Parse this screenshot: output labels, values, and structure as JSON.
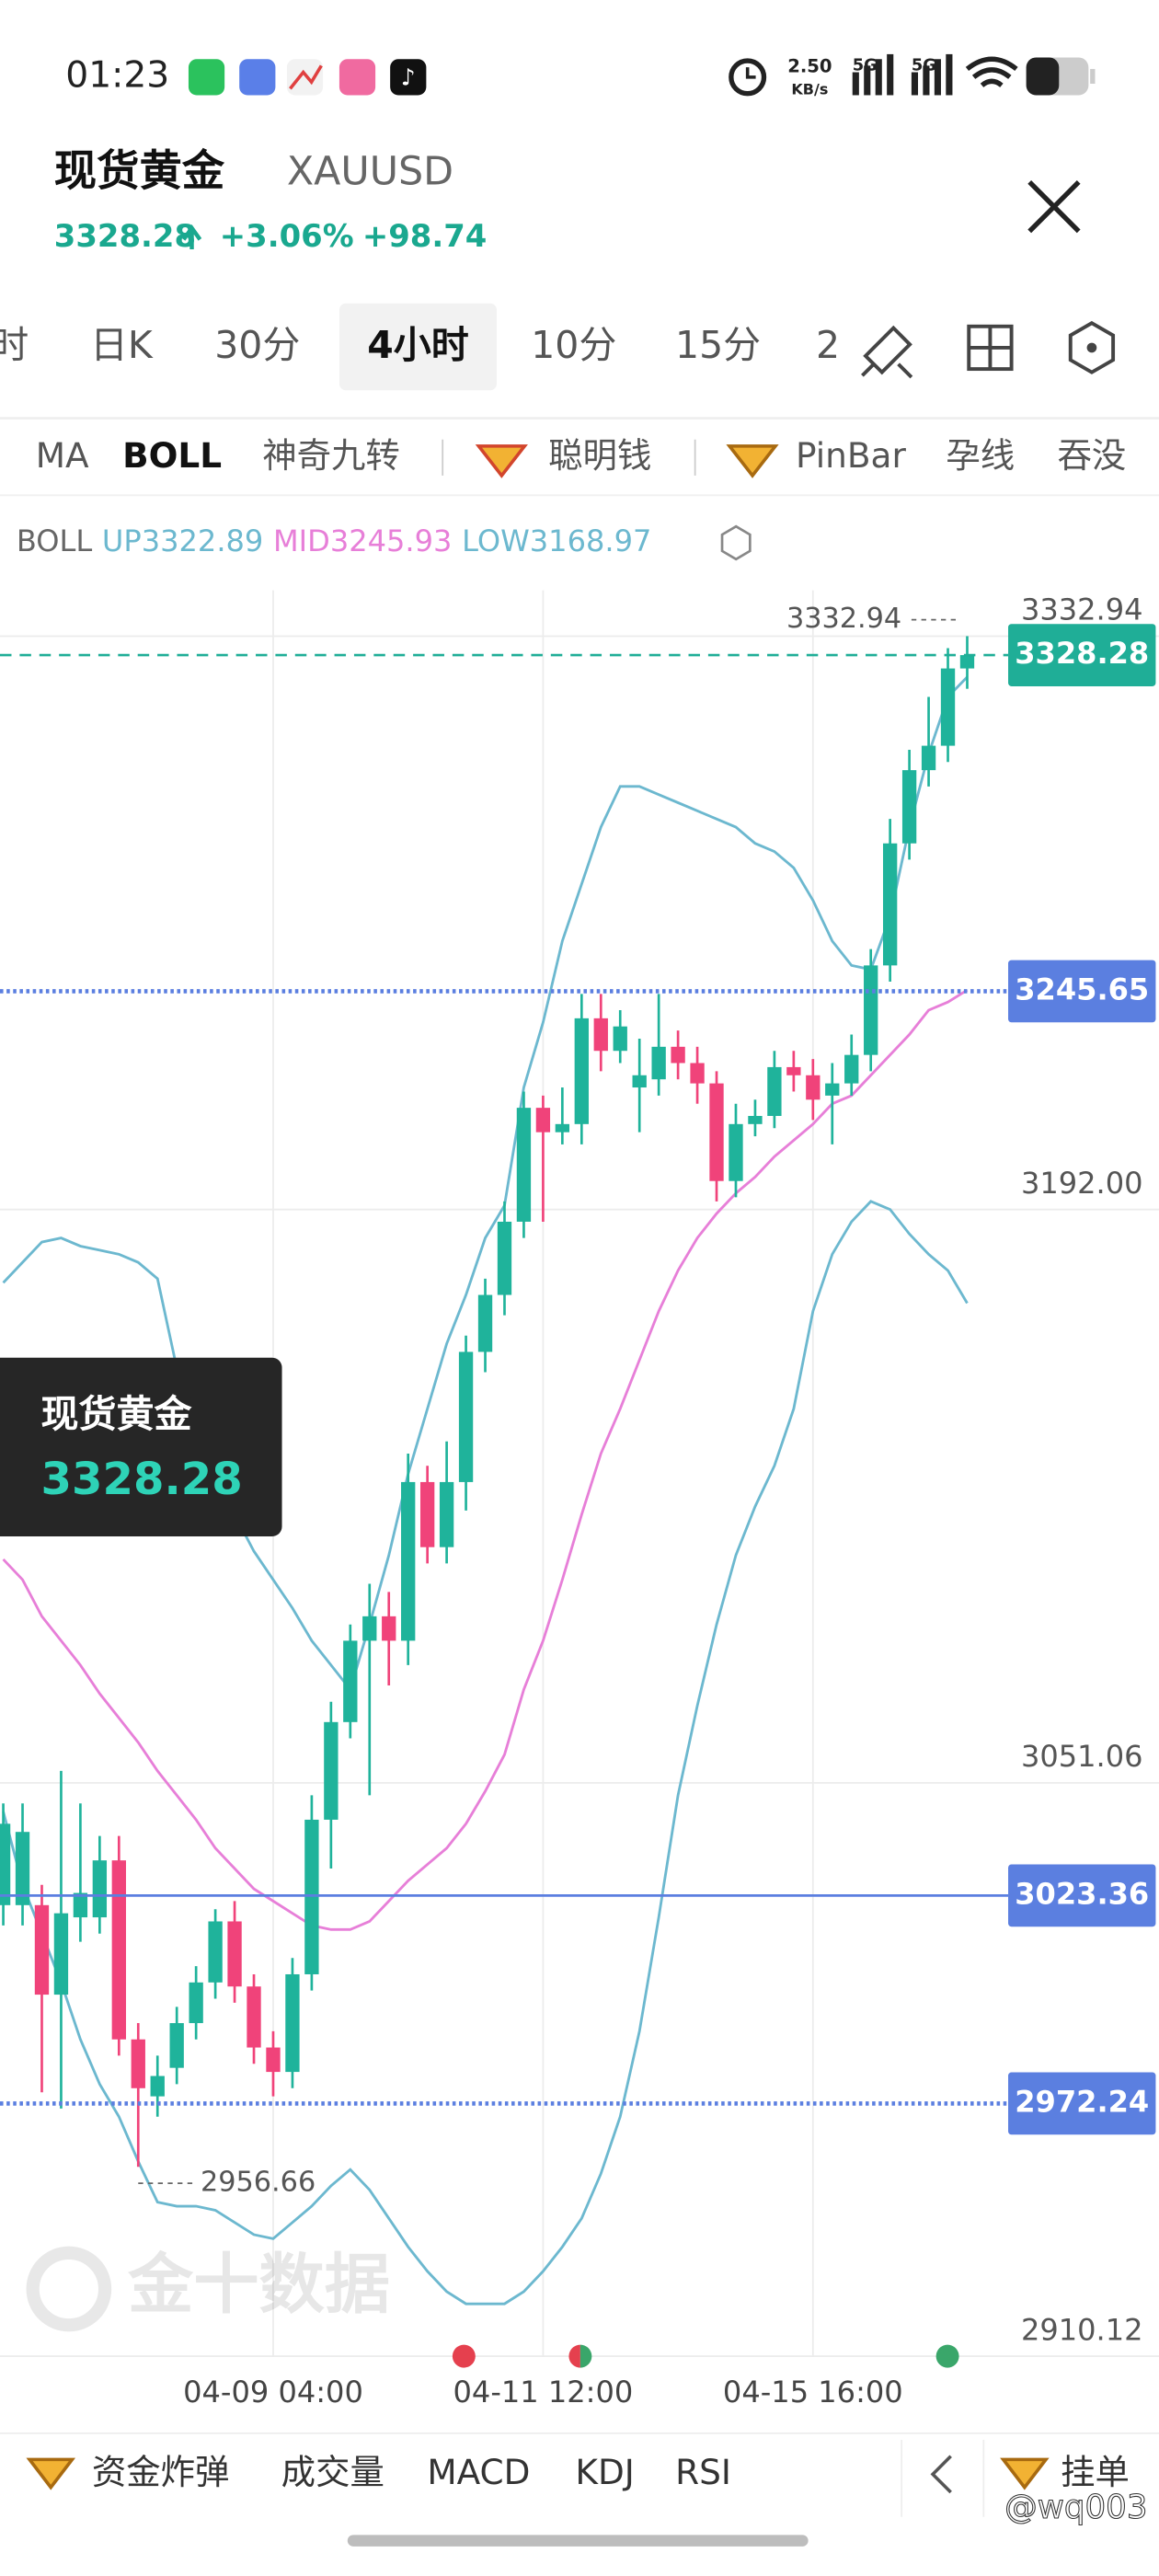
{
  "status_bar": {
    "time": "01:23",
    "speed": "2.50",
    "speed_unit": "KB/s",
    "network": [
      "5G",
      "5G"
    ]
  },
  "header": {
    "title": "现货黄金",
    "symbol": "XAUUSD",
    "change_pct": "+3.06%",
    "change": "+98.74"
  },
  "timeframes": [
    "时",
    "日K",
    "30分",
    "4小时",
    "10分",
    "15分",
    "2"
  ],
  "active_timeframe": 3,
  "indicators": [
    "MA",
    "BOLL",
    "神奇九转",
    "聪明钱",
    "PinBar",
    "孕线",
    "吞没"
  ],
  "active_indicator": 1,
  "chart_data": {
    "type": "candlestick",
    "indicator": "BOLL",
    "categories": [
      null,
      null,
      null,
      null,
      null,
      null,
      null,
      null,
      null,
      null,
      null,
      null,
      null,
      null,
      "04-09 04:00",
      null,
      null,
      null,
      null,
      null,
      null,
      null,
      null,
      null,
      null,
      null,
      null,
      null,
      "04-11 12:00",
      null,
      null,
      null,
      null,
      null,
      null,
      null,
      null,
      null,
      null,
      null,
      null,
      null,
      "04-15 16:00",
      null,
      null,
      null,
      null,
      null,
      null,
      null,
      null
    ],
    "open": [
      3021,
      3021,
      3021,
      2999,
      3018,
      3018,
      3032,
      2988,
      2974,
      2981,
      2992,
      3002,
      3017,
      3001,
      2986,
      2980,
      3004,
      3042,
      3066,
      3086,
      3092,
      3086,
      3125,
      3109,
      3125,
      3157,
      3171,
      3189,
      3217,
      3211,
      3213,
      3239,
      3231,
      3222,
      3224,
      3232,
      3228,
      3223,
      3199,
      3213,
      3215,
      3227,
      3225,
      3220,
      3223,
      3230,
      3252,
      3282,
      3300,
      3306,
      3325
    ],
    "high": [
      3046,
      3046,
      3026,
      3054,
      3046,
      3038,
      3038,
      2992,
      2984,
      2996,
      3006,
      3020,
      3022,
      3004,
      2990,
      3008,
      3048,
      3071,
      3090,
      3100,
      3098,
      3132,
      3129,
      3135,
      3161,
      3175,
      3194,
      3221,
      3220,
      3222,
      3245,
      3245,
      3241,
      3234,
      3245,
      3236,
      3232,
      3226,
      3218,
      3219,
      3231,
      3231,
      3229,
      3228,
      3235,
      3256,
      3288,
      3305,
      3318,
      3330,
      3332.94
    ],
    "low": [
      3016,
      3016,
      2975,
      2971,
      3012,
      3014,
      2984,
      2956.66,
      2969,
      2977,
      2988,
      2998,
      2997,
      2982,
      2974,
      2976,
      3000,
      3030,
      3062,
      3048,
      3075,
      3080,
      3105,
      3105,
      3118,
      3152,
      3166,
      3185,
      3189,
      3208,
      3208,
      3226,
      3228,
      3211,
      3220,
      3224,
      3218,
      3194,
      3195,
      3210,
      3212,
      3221,
      3214,
      3208,
      3220,
      3226,
      3248,
      3278,
      3296,
      3302,
      3320
    ],
    "close": [
      3041,
      3039,
      2999,
      3019,
      3024,
      3032,
      2988,
      2976,
      2979,
      2992,
      3002,
      3017,
      3001,
      2986,
      2980,
      3004,
      3042,
      3066,
      3086,
      3092,
      3086,
      3125,
      3109,
      3125,
      3157,
      3171,
      3189,
      3217,
      3211,
      3213,
      3239,
      3231,
      3237,
      3225,
      3232,
      3228,
      3223,
      3199,
      3213,
      3215,
      3227,
      3225,
      3219,
      3223,
      3230,
      3252,
      3282,
      3300,
      3306,
      3325,
      3328.28
    ],
    "up_color": "#1fb39b",
    "down_color": "#f0437a",
    "series": [
      {
        "name": "UP",
        "color": "#6cb8cf",
        "values": [
          3174,
          3179,
          3184,
          3185,
          3183,
          3182,
          3181,
          3179,
          3175,
          3153,
          3139,
          3125,
          3117,
          3108,
          3101,
          3094,
          3086,
          3080,
          3074,
          3090,
          3107,
          3127,
          3143,
          3159,
          3171,
          3185,
          3193,
          3222,
          3238,
          3258,
          3272,
          3286,
          3296,
          3296,
          3294,
          3292,
          3290,
          3288,
          3286,
          3282,
          3280,
          3276,
          3268,
          3258,
          3252,
          3251,
          3264,
          3286,
          3304,
          3318,
          3322.89
        ]
      },
      {
        "name": "MID",
        "color": "#e77fd8",
        "values": [
          3106,
          3101,
          3092,
          3086,
          3080,
          3073,
          3067,
          3061,
          3054,
          3048,
          3042,
          3035,
          3030,
          3025,
          3022,
          3019,
          3016,
          3015,
          3015,
          3017,
          3022,
          3027,
          3031,
          3035,
          3041,
          3049,
          3058,
          3074,
          3086,
          3101,
          3117,
          3132,
          3143,
          3155,
          3167,
          3177,
          3185,
          3191,
          3196,
          3200,
          3205,
          3209,
          3213,
          3218,
          3220,
          3225,
          3230,
          3235,
          3241,
          3243,
          3245.93
        ]
      },
      {
        "name": "LOW",
        "color": "#6cb8cf",
        "values": [
          3044,
          3026,
          3014,
          3002,
          2988,
          2977,
          2969,
          2958,
          2948,
          2947,
          2947,
          2946,
          2943,
          2940,
          2939,
          2943,
          2947,
          2952,
          2956,
          2951,
          2944,
          2937,
          2931,
          2926,
          2923,
          2923,
          2923,
          2926,
          2931,
          2937,
          2944,
          2955,
          2969,
          2990,
          3018,
          3048,
          3070,
          3090,
          3107,
          3119,
          3129,
          3143,
          3167,
          3181,
          3189,
          3194,
          3192,
          3186,
          3181,
          3177,
          3168.97
        ]
      }
    ],
    "ylim": [
      2910.12,
      3344.2
    ],
    "yticks": [
      3332.94,
      {
        "value": 3192,
        "label": "3192.00"
      },
      3051.06,
      2910.12
    ],
    "grid": true,
    "price_lines": [
      {
        "value": 3328.28,
        "color": "#1fae97",
        "style": "dashed"
      },
      {
        "value": 3245.65,
        "color": "#5b7fe0",
        "style": "dotted"
      },
      {
        "value": 3023.36,
        "color": "#5b7fe0",
        "style": "solid"
      },
      {
        "value": 2972.24,
        "color": "#5b7fe0",
        "style": "dotted"
      }
    ]
  },
  "tooltip": {
    "title": "现货黄金"
  },
  "watermark": "金十数据",
  "bottom_bar": [
    "资金炸弹",
    "成交量",
    "MACD",
    "KDJ",
    "RSI"
  ],
  "order_button": "挂单",
  "user_watermark": "@wq003"
}
